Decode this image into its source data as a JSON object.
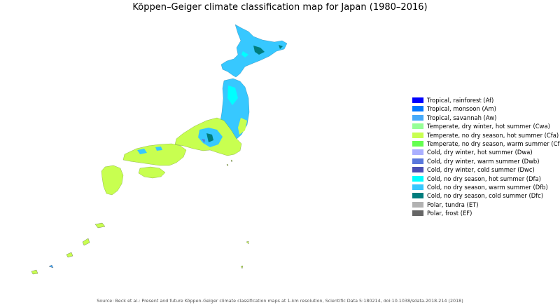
{
  "title": "Köppen–Geiger climate classification map for Japan (1980–2016)",
  "legend": [
    {
      "label": "Tropical, rainforest (Af)",
      "color": "#0000fe"
    },
    {
      "label": "Tropical, monsoon (Am)",
      "color": "#0078ff"
    },
    {
      "label": "Tropical, savannah (Aw)",
      "color": "#46aafa"
    },
    {
      "label": "Temperate, dry winter, hot summer (Cwa)",
      "color": "#96ff96"
    },
    {
      "label": "Temperate, no dry season, hot summer (Cfa)",
      "color": "#c8ff50"
    },
    {
      "label": "Temperate, no dry season, warm summer (Cfb)",
      "color": "#64ff50"
    },
    {
      "label": "Cold, dry winter, hot summer (Dwa)",
      "color": "#aaafff"
    },
    {
      "label": "Cold, dry winter, warm summer (Dwb)",
      "color": "#5a78dc"
    },
    {
      "label": "Cold, dry winter, cold summer (Dwc)",
      "color": "#4b50b4"
    },
    {
      "label": "Cold, no dry season, hot summer (Dfa)",
      "color": "#00ffff"
    },
    {
      "label": "Cold, no dry season, warm summer (Dfb)",
      "color": "#37c8ff"
    },
    {
      "label": "Cold, no dry season, cold summer (Dfc)",
      "color": "#007d7d"
    },
    {
      "label": "Polar, tundra (ET)",
      "color": "#b2b2b2"
    },
    {
      "label": "Polar, frost (EF)",
      "color": "#666666"
    }
  ],
  "source": "Source: Beck et al.: Present and future Köppen-Geiger climate classification maps at 1-km resolution, Scientific Data 5:180214, doi:10.1038/sdata.2018.214 (2018)"
}
